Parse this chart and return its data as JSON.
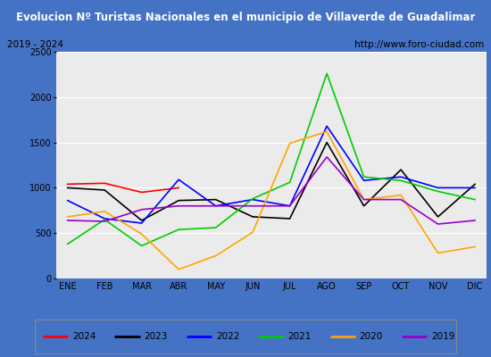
{
  "title": "Evolucion Nº Turistas Nacionales en el municipio de Villaverde de Guadalimar",
  "subtitle_left": "2019 - 2024",
  "subtitle_right": "http://www.foro-ciudad.com",
  "title_bg_color": "#4472c4",
  "title_text_color": "#ffffff",
  "months": [
    "ENE",
    "FEB",
    "MAR",
    "ABR",
    "MAY",
    "JUN",
    "JUL",
    "AGO",
    "SEP",
    "OCT",
    "NOV",
    "DIC"
  ],
  "series": {
    "2024": {
      "color": "#ff0000",
      "data": [
        1040,
        1050,
        950,
        1000,
        null,
        null,
        null,
        null,
        null,
        null,
        null,
        null
      ]
    },
    "2023": {
      "color": "#000000",
      "data": [
        1000,
        975,
        640,
        860,
        870,
        680,
        660,
        1500,
        800,
        1200,
        680,
        1040
      ]
    },
    "2022": {
      "color": "#0000ff",
      "data": [
        860,
        660,
        610,
        1090,
        800,
        870,
        800,
        1680,
        1080,
        1120,
        1000,
        1000
      ]
    },
    "2021": {
      "color": "#00cc00",
      "data": [
        380,
        650,
        360,
        540,
        560,
        880,
        1060,
        2260,
        1120,
        1080,
        960,
        870
      ]
    },
    "2020": {
      "color": "#ffa500",
      "data": [
        680,
        740,
        490,
        100,
        250,
        510,
        1490,
        1620,
        870,
        920,
        280,
        350
      ]
    },
    "2019": {
      "color": "#9900cc",
      "data": [
        640,
        630,
        760,
        800,
        800,
        800,
        800,
        1340,
        870,
        870,
        600,
        640
      ]
    }
  },
  "ylim": [
    0,
    2500
  ],
  "yticks": [
    0,
    500,
    1000,
    1500,
    2000,
    2500
  ],
  "bg_color": "#ffffff",
  "plot_bg_color": "#ebebeb",
  "grid_color": "#ffffff",
  "border_color": "#4472c4",
  "fig_width": 5.5,
  "fig_height": 4.0,
  "dpi": 100
}
